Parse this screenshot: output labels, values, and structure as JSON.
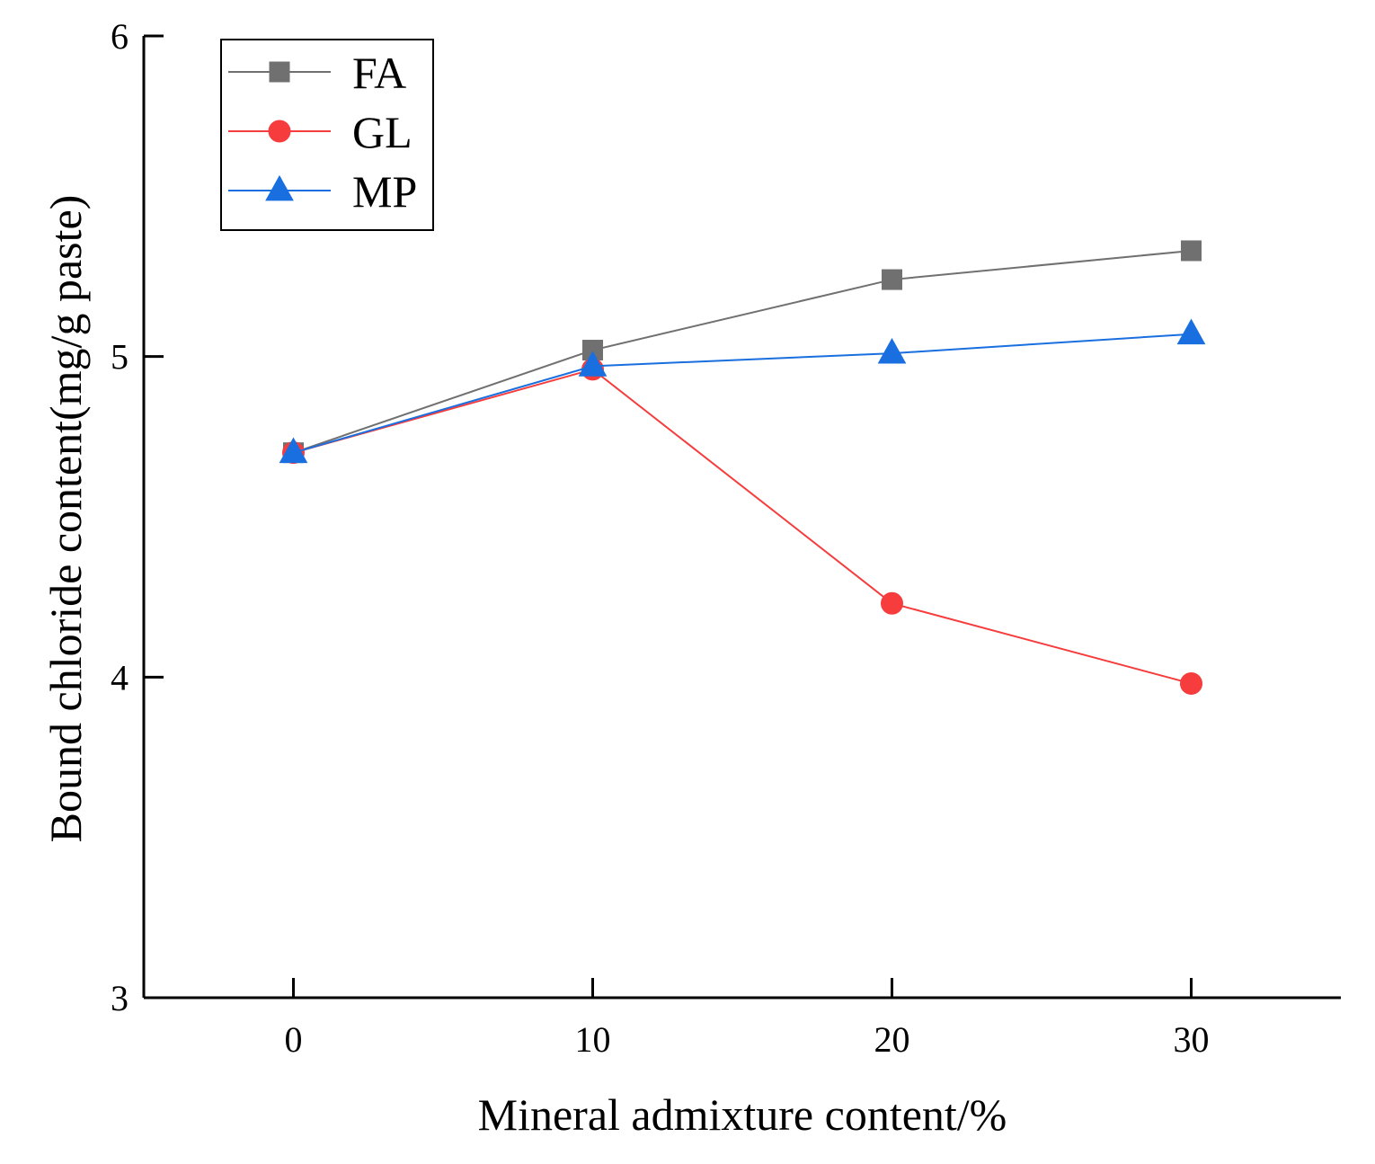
{
  "chart_data": {
    "type": "line",
    "xlabel": "Mineral admixture content/%",
    "ylabel": "Bound chloride content(mg/g paste)",
    "x": [
      0,
      10,
      20,
      30
    ],
    "x_ticks": [
      "0",
      "10",
      "20",
      "30"
    ],
    "y_ticks": [
      "3",
      "4",
      "5",
      "6"
    ],
    "xlim": [
      -5,
      35
    ],
    "ylim": [
      3,
      6
    ],
    "grid": false,
    "legend_position": "top-left",
    "series": [
      {
        "name": "FA",
        "values": [
          4.7,
          5.02,
          5.24,
          5.33
        ],
        "color": "#707070",
        "marker": "square"
      },
      {
        "name": "GL",
        "values": [
          4.7,
          4.96,
          4.23,
          3.98
        ],
        "color": "#f63c3c",
        "marker": "circle"
      },
      {
        "name": "MP",
        "values": [
          4.7,
          4.97,
          5.01,
          5.07
        ],
        "color": "#1a6fe0",
        "marker": "triangle"
      }
    ]
  }
}
